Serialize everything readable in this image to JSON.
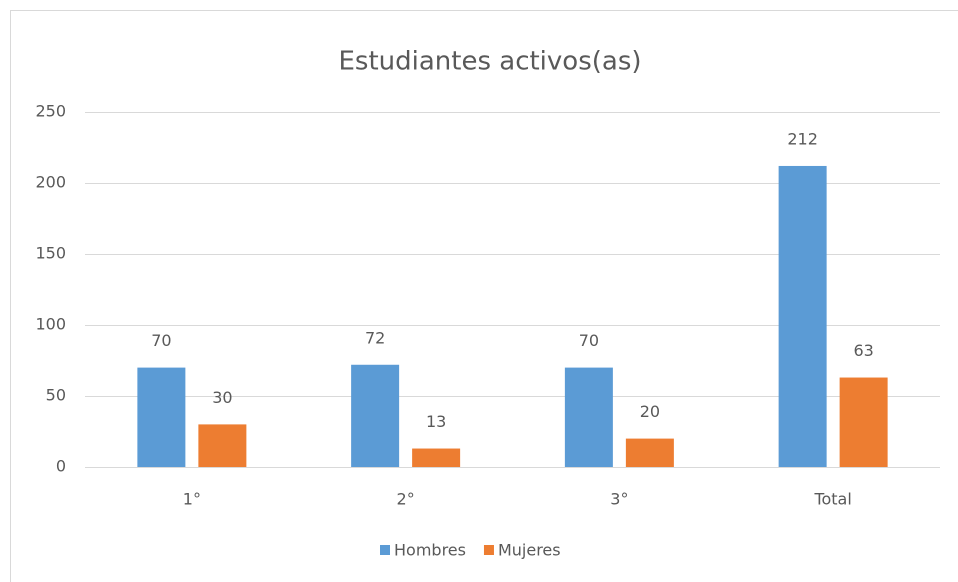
{
  "chart_data": {
    "type": "bar",
    "title": "Estudiantes activos(as)",
    "categories": [
      "1°",
      "2°",
      "3°",
      "Total"
    ],
    "series": [
      {
        "name": "Hombres",
        "color": "#5b9bd5",
        "values": [
          70,
          72,
          70,
          212
        ]
      },
      {
        "name": "Mujeres",
        "color": "#ed7d31",
        "values": [
          30,
          13,
          20,
          63
        ]
      }
    ],
    "ylim": [
      0,
      250
    ],
    "yticks": [
      0,
      50,
      100,
      150,
      200,
      250
    ],
    "grid": true,
    "legend": "bottom"
  }
}
